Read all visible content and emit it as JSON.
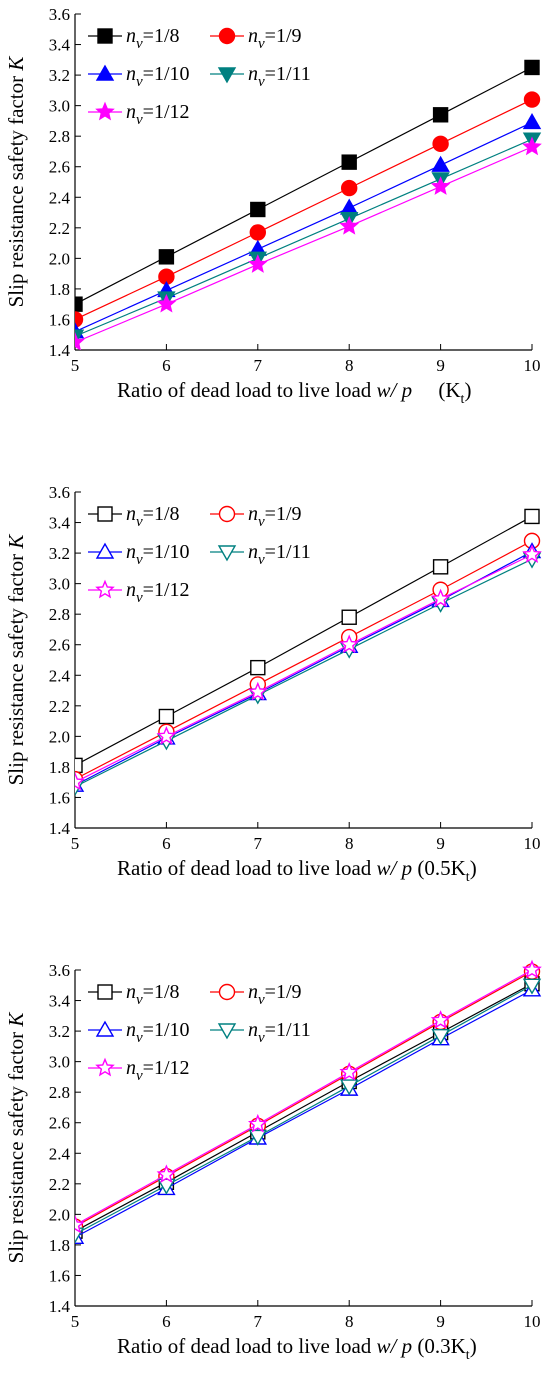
{
  "chart_data": [
    {
      "type": "line",
      "filled_markers": true,
      "xlabel": "Ratio of dead load to live load",
      "xlabel_var": "w/ p",
      "xlabel_suffix": "(K",
      "xlabel_sub": "t",
      "xlabel_close": ")",
      "ylabel": "Slip resistance safety factor",
      "ylabel_var": "K",
      "xlim": [
        5,
        10
      ],
      "ylim": [
        1.4,
        3.6
      ],
      "xticks": [
        "5",
        "6",
        "7",
        "8",
        "9",
        "10"
      ],
      "yticks": [
        "1.4",
        "1.6",
        "1.8",
        "2.0",
        "2.2",
        "2.4",
        "2.6",
        "2.8",
        "3.0",
        "3.2",
        "3.4",
        "3.6"
      ],
      "x": [
        5,
        6,
        7,
        8,
        9,
        10
      ],
      "series": [
        {
          "name": "n",
          "sub": "v",
          "ratio": "=1/8",
          "color": "#000000",
          "marker": "square",
          "values": [
            1.7,
            2.01,
            2.32,
            2.63,
            2.94,
            3.25
          ]
        },
        {
          "name": "n",
          "sub": "v",
          "ratio": "=1/9",
          "color": "#ff0000",
          "marker": "circle",
          "values": [
            1.6,
            1.88,
            2.17,
            2.46,
            2.75,
            3.04
          ]
        },
        {
          "name": "n",
          "sub": "v",
          "ratio": "=1/10",
          "color": "#0000ff",
          "marker": "triangle-up",
          "values": [
            1.52,
            1.79,
            2.06,
            2.33,
            2.61,
            2.89
          ]
        },
        {
          "name": "n",
          "sub": "v",
          "ratio": "=1/11",
          "color": "#008080",
          "marker": "triangle-down",
          "values": [
            1.49,
            1.74,
            2.0,
            2.26,
            2.52,
            2.78
          ]
        },
        {
          "name": "n",
          "sub": "v",
          "ratio": "=1/12",
          "color": "#ff00ff",
          "marker": "star",
          "values": [
            1.45,
            1.7,
            1.96,
            2.21,
            2.47,
            2.73
          ]
        }
      ]
    },
    {
      "type": "line",
      "filled_markers": false,
      "xlabel": "Ratio of dead load to live load",
      "xlabel_var": "w/ p",
      "xlabel_suffix": "(0.5K",
      "xlabel_sub": "t",
      "xlabel_close": ")",
      "ylabel": "Slip resistance safety factor",
      "ylabel_var": "K",
      "xlim": [
        5,
        10
      ],
      "ylim": [
        1.4,
        3.6
      ],
      "xticks": [
        "5",
        "6",
        "7",
        "8",
        "9",
        "10"
      ],
      "yticks": [
        "1.4",
        "1.6",
        "1.8",
        "2.0",
        "2.2",
        "2.4",
        "2.6",
        "2.8",
        "3.0",
        "3.2",
        "3.4",
        "3.6"
      ],
      "x": [
        5,
        6,
        7,
        8,
        9,
        10
      ],
      "series": [
        {
          "name": "n",
          "sub": "v",
          "ratio": "=1/8",
          "color": "#000000",
          "marker": "square",
          "values": [
            1.81,
            2.13,
            2.45,
            2.78,
            3.11,
            3.44
          ]
        },
        {
          "name": "n",
          "sub": "v",
          "ratio": "=1/9",
          "color": "#ff0000",
          "marker": "circle",
          "values": [
            1.72,
            2.03,
            2.34,
            2.65,
            2.96,
            3.28
          ]
        },
        {
          "name": "n",
          "sub": "v",
          "ratio": "=1/10",
          "color": "#0000ff",
          "marker": "triangle-up",
          "values": [
            1.68,
            1.99,
            2.28,
            2.59,
            2.89,
            3.21
          ]
        },
        {
          "name": "n",
          "sub": "v",
          "ratio": "=1/11",
          "color": "#008080",
          "marker": "triangle-down",
          "values": [
            1.67,
            1.97,
            2.27,
            2.57,
            2.87,
            3.16
          ]
        },
        {
          "name": "n",
          "sub": "v",
          "ratio": "=1/12",
          "color": "#ff00ff",
          "marker": "star",
          "values": [
            1.7,
            2.0,
            2.29,
            2.6,
            2.9,
            3.19
          ]
        }
      ]
    },
    {
      "type": "line",
      "filled_markers": false,
      "xlabel": "Ratio of dead load to live load",
      "xlabel_var": "w/ p",
      "xlabel_suffix": "(0.3K",
      "xlabel_sub": "t",
      "xlabel_close": ")",
      "ylabel": "Slip resistance safety factor",
      "ylabel_var": "K",
      "xlim": [
        5,
        10
      ],
      "ylim": [
        1.4,
        3.6
      ],
      "xticks": [
        "5",
        "6",
        "7",
        "8",
        "9",
        "10"
      ],
      "yticks": [
        "1.4",
        "1.6",
        "1.8",
        "2.0",
        "2.2",
        "2.4",
        "2.6",
        "2.8",
        "3.0",
        "3.2",
        "3.4",
        "3.6"
      ],
      "x": [
        5,
        6,
        7,
        8,
        9,
        10
      ],
      "series": [
        {
          "name": "n",
          "sub": "v",
          "ratio": "=1/8",
          "color": "#000000",
          "marker": "square",
          "values": [
            1.89,
            2.21,
            2.54,
            2.87,
            3.19,
            3.51
          ]
        },
        {
          "name": "n",
          "sub": "v",
          "ratio": "=1/9",
          "color": "#ff0000",
          "marker": "circle",
          "values": [
            1.92,
            2.25,
            2.58,
            2.92,
            3.26,
            3.59
          ]
        },
        {
          "name": "n",
          "sub": "v",
          "ratio": "=1/10",
          "color": "#0000ff",
          "marker": "triangle-up",
          "values": [
            1.85,
            2.17,
            2.5,
            2.82,
            3.15,
            3.47
          ]
        },
        {
          "name": "n",
          "sub": "v",
          "ratio": "=1/11",
          "color": "#008080",
          "marker": "triangle-down",
          "values": [
            1.87,
            2.19,
            2.51,
            2.84,
            3.17,
            3.5
          ]
        },
        {
          "name": "n",
          "sub": "v",
          "ratio": "=1/12",
          "color": "#ff00ff",
          "marker": "star",
          "values": [
            1.93,
            2.26,
            2.59,
            2.93,
            3.27,
            3.6
          ]
        }
      ]
    }
  ]
}
